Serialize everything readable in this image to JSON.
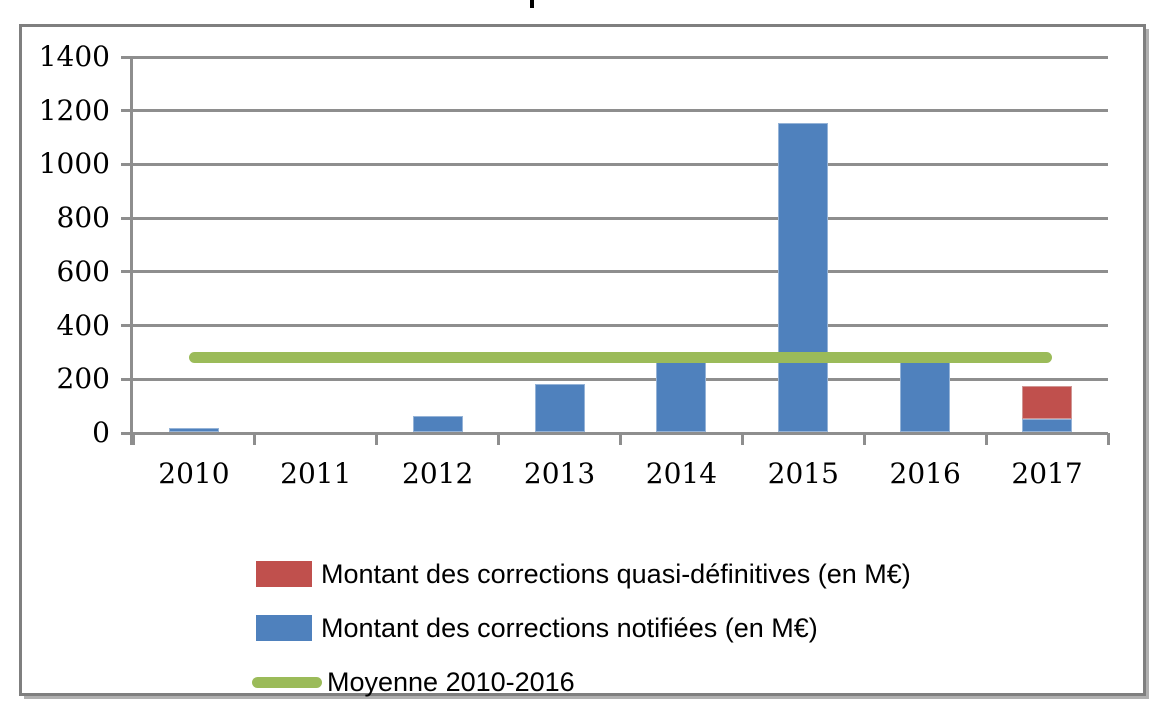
{
  "chart_data": {
    "type": "bar",
    "stacked": true,
    "categories": [
      "2010",
      "2011",
      "2012",
      "2013",
      "2014",
      "2015",
      "2016",
      "2017"
    ],
    "series": [
      {
        "name": "Montant des corrections quasi-définitives (en M€)",
        "color": "#C0504D",
        "edge": "#d09694",
        "values": [
          0,
          0,
          0,
          0,
          0,
          0,
          0,
          120
        ]
      },
      {
        "name": "Montant des corrections notifiées (en M€)",
        "color": "#4F81BD",
        "edge": "#95B3D7",
        "values": [
          15,
          0,
          60,
          180,
          265,
          1150,
          265,
          50
        ]
      }
    ],
    "reference_line": {
      "name": "Moyenne 2010-2016",
      "color": "#9BBB59",
      "value": 280,
      "span": "from 2010 center to 2017 center"
    },
    "ylim": [
      0,
      1400
    ],
    "ytick_step": 200,
    "yticks": [
      0,
      200,
      400,
      600,
      800,
      1000,
      1200,
      1400
    ],
    "grid": true,
    "gridline_color": "#8e8e8e",
    "frame_color": "#7f7f7f",
    "legend_position": "bottom-left"
  }
}
